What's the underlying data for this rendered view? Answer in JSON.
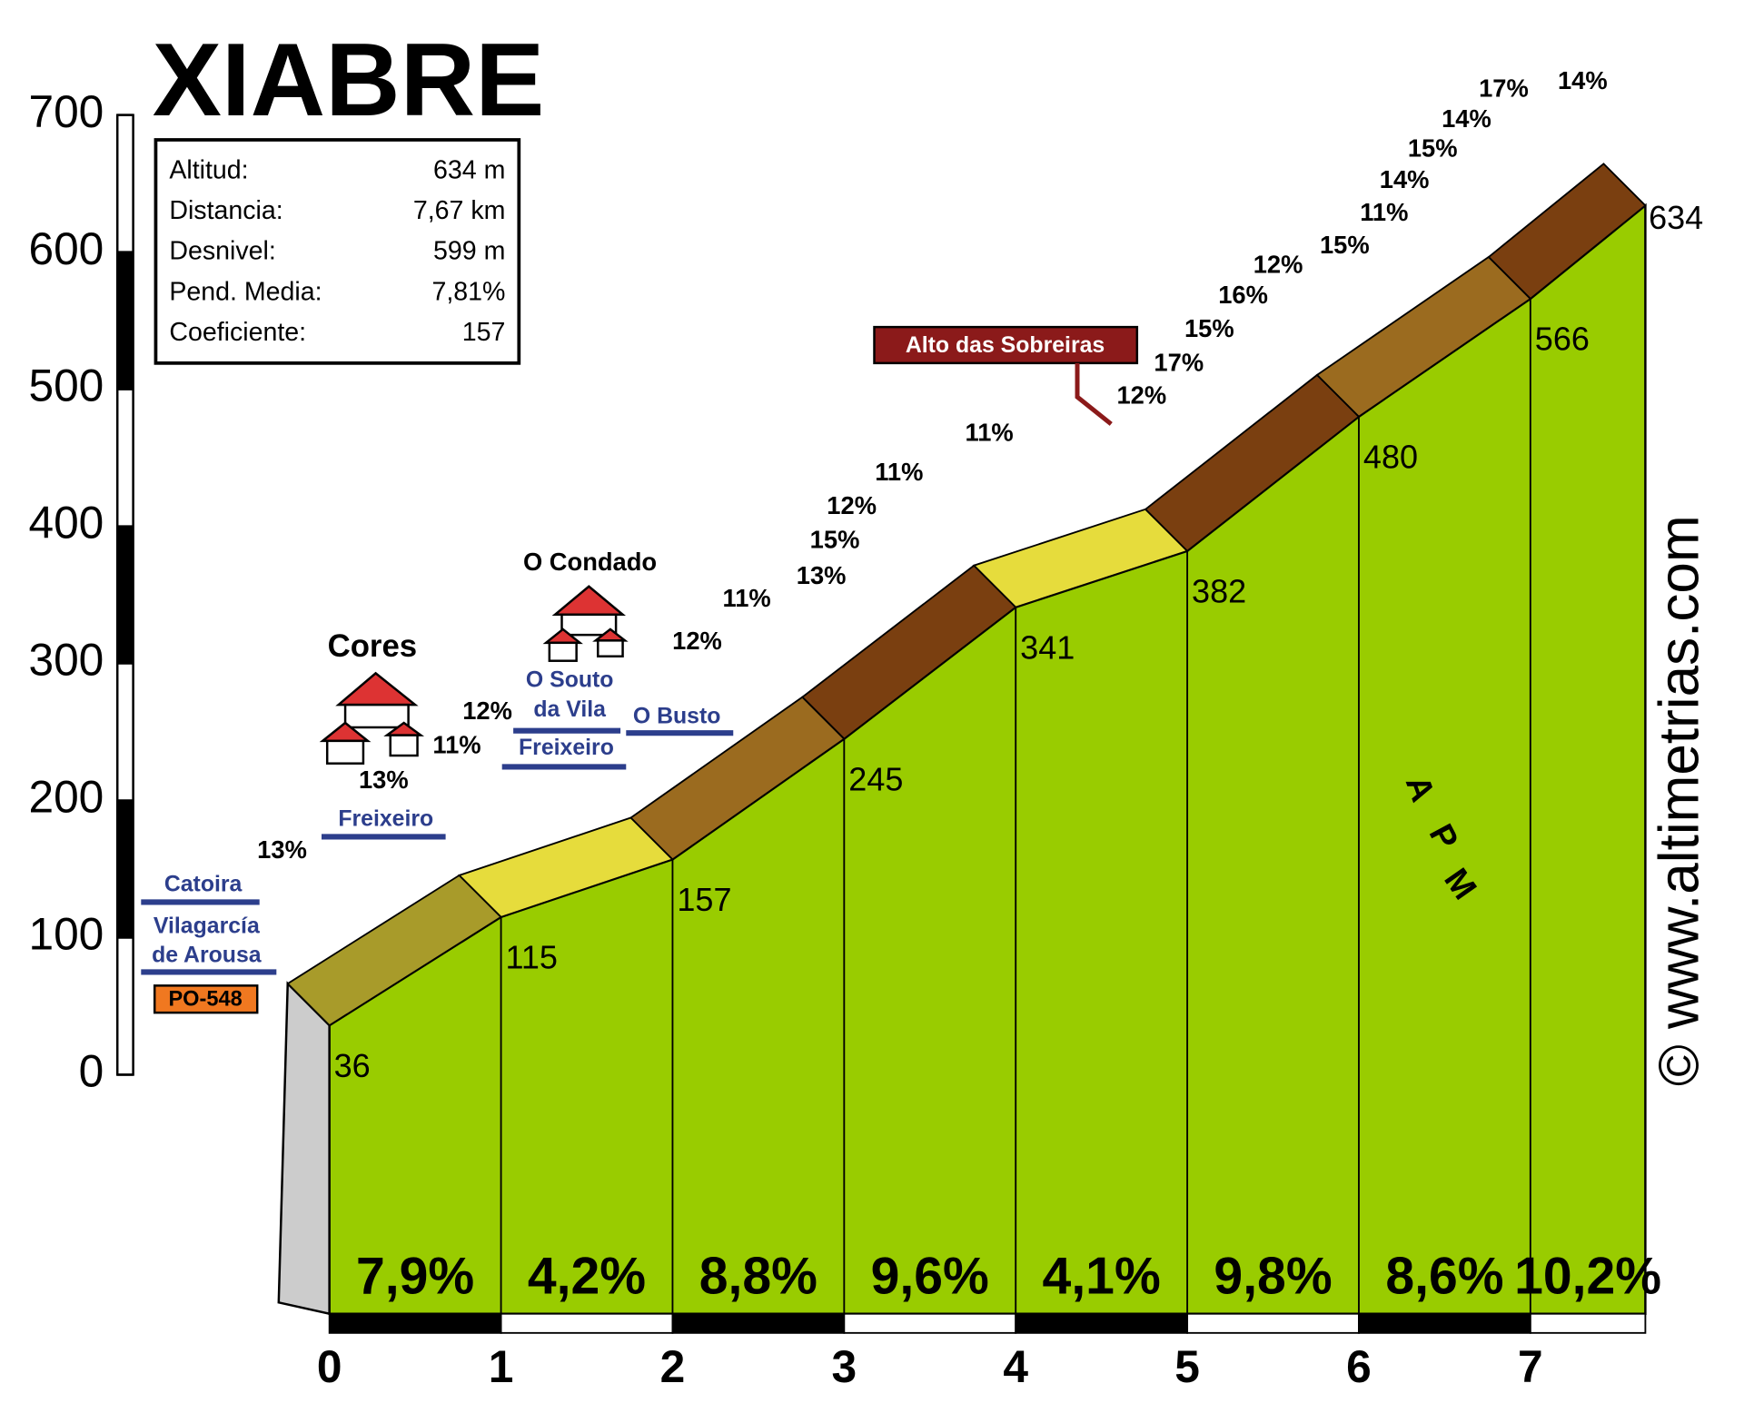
{
  "chart_data": {
    "type": "elevation_profile",
    "title": "XIABRE",
    "info": {
      "labels": [
        "Altitud:",
        "Distancia:",
        "Desnivel:",
        "Pend. Media:",
        "Coeficiente:"
      ],
      "values": [
        "634 m",
        "7,67 km",
        "599 m",
        "7,81%",
        "157"
      ]
    },
    "x": [
      0,
      1,
      2,
      3,
      4,
      5,
      6,
      7,
      7.67
    ],
    "values": [
      36,
      115,
      157,
      245,
      341,
      382,
      480,
      566,
      634
    ],
    "gradients": {
      "values": [
        7.9,
        4.2,
        8.8,
        9.6,
        4.1,
        9.8,
        8.6,
        10.2
      ],
      "value_labels": [
        "7,9%",
        "4,2%",
        "8,8%",
        "9,6%",
        "4,1%",
        "9,8%",
        "8,6%",
        "10,2%"
      ]
    },
    "color": "#99cc00",
    "xlim": [
      0,
      7.67
    ],
    "xticks": [
      0,
      1,
      2,
      3,
      4,
      5,
      6,
      7
    ],
    "ylim": [
      0,
      700
    ],
    "yticks": [
      0,
      100,
      200,
      300,
      400,
      500,
      600,
      700
    ],
    "places": [
      "Cores",
      "O Condado"
    ],
    "road_labels": [
      "Catoira",
      "Vilagarcía",
      "de Arousa",
      "Freixeiro",
      "O Souto",
      "da Vila",
      "Freixeiro",
      "O Busto"
    ],
    "road_code": "PO-548",
    "summit_label": "Alto das Sobreiras",
    "slope_notes": [
      "13%",
      "13%",
      "11%",
      "12%",
      "12%",
      "11%",
      "13%",
      "15%",
      "12%",
      "11%",
      "11%",
      "12%",
      "17%",
      "15%",
      "16%",
      "12%",
      "15%",
      "11%",
      "14%",
      "15%",
      "14%",
      "17%",
      "14%"
    ],
    "watermark": "© www.altimetrias.com",
    "logo": [
      "A",
      "P",
      "M"
    ]
  }
}
